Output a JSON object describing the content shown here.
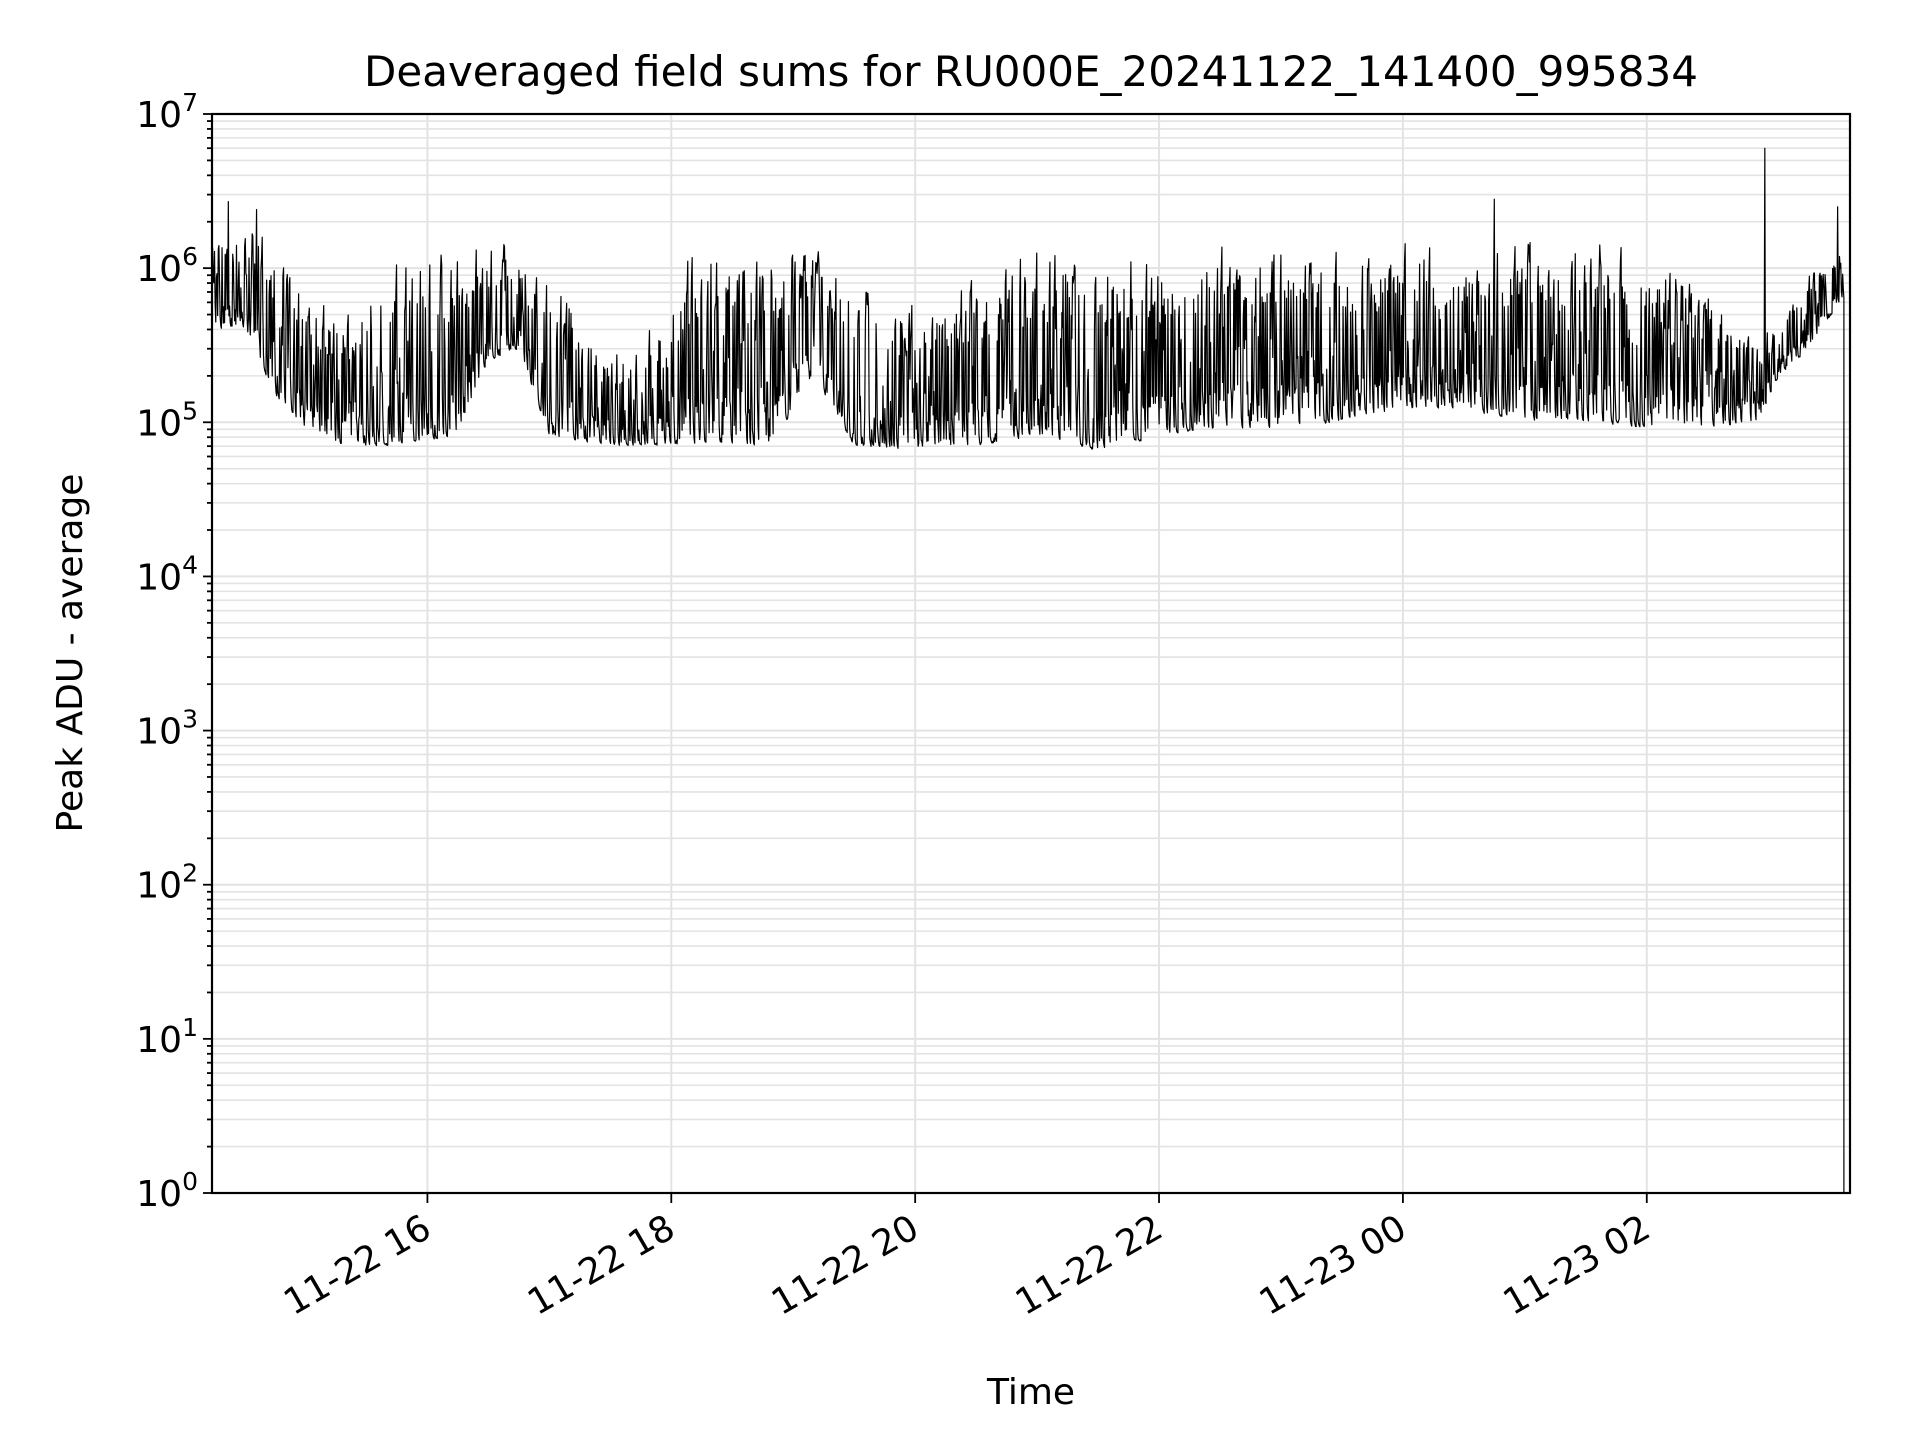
{
  "chart_data": {
    "type": "line",
    "title": "Deaveraged field sums for RU000E_20241122_141400_995834",
    "xlabel": "Time",
    "ylabel": "Peak ADU - average",
    "yscale": "log",
    "ylim": [
      1,
      10000000
    ],
    "xlim": [
      "2024-11-22 14:14",
      "2024-11-23 03:40"
    ],
    "grid": true,
    "legend": "none",
    "line_color": "#000000",
    "y_ticks": [
      {
        "value": 1,
        "base": "10",
        "exp": "0"
      },
      {
        "value": 10,
        "base": "10",
        "exp": "1"
      },
      {
        "value": 100,
        "base": "10",
        "exp": "2"
      },
      {
        "value": 1000,
        "base": "10",
        "exp": "3"
      },
      {
        "value": 10000,
        "base": "10",
        "exp": "4"
      },
      {
        "value": 100000,
        "base": "10",
        "exp": "5"
      },
      {
        "value": 1000000,
        "base": "10",
        "exp": "6"
      },
      {
        "value": 10000000,
        "base": "10",
        "exp": "7"
      }
    ],
    "x_ticks": [
      {
        "time": "2024-11-22 16:00",
        "label": "11-22 16"
      },
      {
        "time": "2024-11-22 18:00",
        "label": "11-22 18"
      },
      {
        "time": "2024-11-22 20:00",
        "label": "11-22 20"
      },
      {
        "time": "2024-11-22 22:00",
        "label": "11-22 22"
      },
      {
        "time": "2024-11-23 00:00",
        "label": "11-23 00"
      },
      {
        "time": "2024-11-23 02:00",
        "label": "11-23 02"
      }
    ],
    "series": [
      {
        "trend": [
          {
            "t": "2024-11-22 14:14",
            "low": 400000,
            "high": 2000000
          },
          {
            "t": "2024-11-22 14:30",
            "low": 400000,
            "high": 2200000
          },
          {
            "t": "2024-11-22 14:45",
            "low": 150000,
            "high": 1500000
          },
          {
            "t": "2024-11-22 15:00",
            "low": 90000,
            "high": 800000
          },
          {
            "t": "2024-11-22 15:15",
            "low": 70000,
            "high": 600000
          },
          {
            "t": "2024-11-22 15:30",
            "low": 70000,
            "high": 900000
          },
          {
            "t": "2024-11-22 15:45",
            "low": 70000,
            "high": 1300000
          },
          {
            "t": "2024-11-22 16:15",
            "low": 80000,
            "high": 1400000
          },
          {
            "t": "2024-11-22 16:30",
            "low": 250000,
            "high": 1600000
          },
          {
            "t": "2024-11-22 16:45",
            "low": 300000,
            "high": 1600000
          },
          {
            "t": "2024-11-22 17:00",
            "low": 80000,
            "high": 1000000
          },
          {
            "t": "2024-11-22 17:30",
            "low": 70000,
            "high": 300000
          },
          {
            "t": "2024-11-22 17:50",
            "low": 70000,
            "high": 500000
          },
          {
            "t": "2024-11-22 18:10",
            "low": 70000,
            "high": 1500000
          },
          {
            "t": "2024-11-22 18:50",
            "low": 70000,
            "high": 1600000
          },
          {
            "t": "2024-11-22 19:10",
            "low": 200000,
            "high": 1500000
          },
          {
            "t": "2024-11-22 19:30",
            "low": 70000,
            "high": 1000000
          },
          {
            "t": "2024-11-22 20:00",
            "low": 65000,
            "high": 700000
          },
          {
            "t": "2024-11-22 20:30",
            "low": 70000,
            "high": 900000
          },
          {
            "t": "2024-11-22 21:00",
            "low": 80000,
            "high": 1600000
          },
          {
            "t": "2024-11-22 21:30",
            "low": 65000,
            "high": 1500000
          },
          {
            "t": "2024-11-22 22:00",
            "low": 80000,
            "high": 1500000
          },
          {
            "t": "2024-11-22 22:30",
            "low": 90000,
            "high": 1600000
          },
          {
            "t": "2024-11-22 23:00",
            "low": 90000,
            "high": 1600000
          },
          {
            "t": "2024-11-22 23:30",
            "low": 100000,
            "high": 1600000
          },
          {
            "t": "2024-11-23 00:00",
            "low": 120000,
            "high": 1700000
          },
          {
            "t": "2024-11-23 00:30",
            "low": 120000,
            "high": 1700000
          },
          {
            "t": "2024-11-23 01:00",
            "low": 100000,
            "high": 1700000
          },
          {
            "t": "2024-11-23 01:30",
            "low": 100000,
            "high": 1700000
          },
          {
            "t": "2024-11-23 02:00",
            "low": 90000,
            "high": 1600000
          },
          {
            "t": "2024-11-23 02:30",
            "low": 90000,
            "high": 800000
          },
          {
            "t": "2024-11-23 02:55",
            "low": 100000,
            "high": 400000
          },
          {
            "t": "2024-11-23 03:05",
            "low": 200000,
            "high": 500000
          },
          {
            "t": "2024-11-23 03:20",
            "low": 300000,
            "high": 1000000
          },
          {
            "t": "2024-11-23 03:35",
            "low": 600000,
            "high": 1500000
          }
        ],
        "spikes": [
          {
            "t": "2024-11-22 14:22",
            "value": 2700000
          },
          {
            "t": "2024-11-22 14:36",
            "value": 2400000
          },
          {
            "t": "2024-11-23 00:45",
            "value": 2800000
          },
          {
            "t": "2024-11-23 02:58",
            "value": 6000000
          },
          {
            "t": "2024-11-23 03:34",
            "value": 2500000
          }
        ],
        "end": {
          "t": "2024-11-23 03:37",
          "value": 1
        }
      }
    ]
  }
}
